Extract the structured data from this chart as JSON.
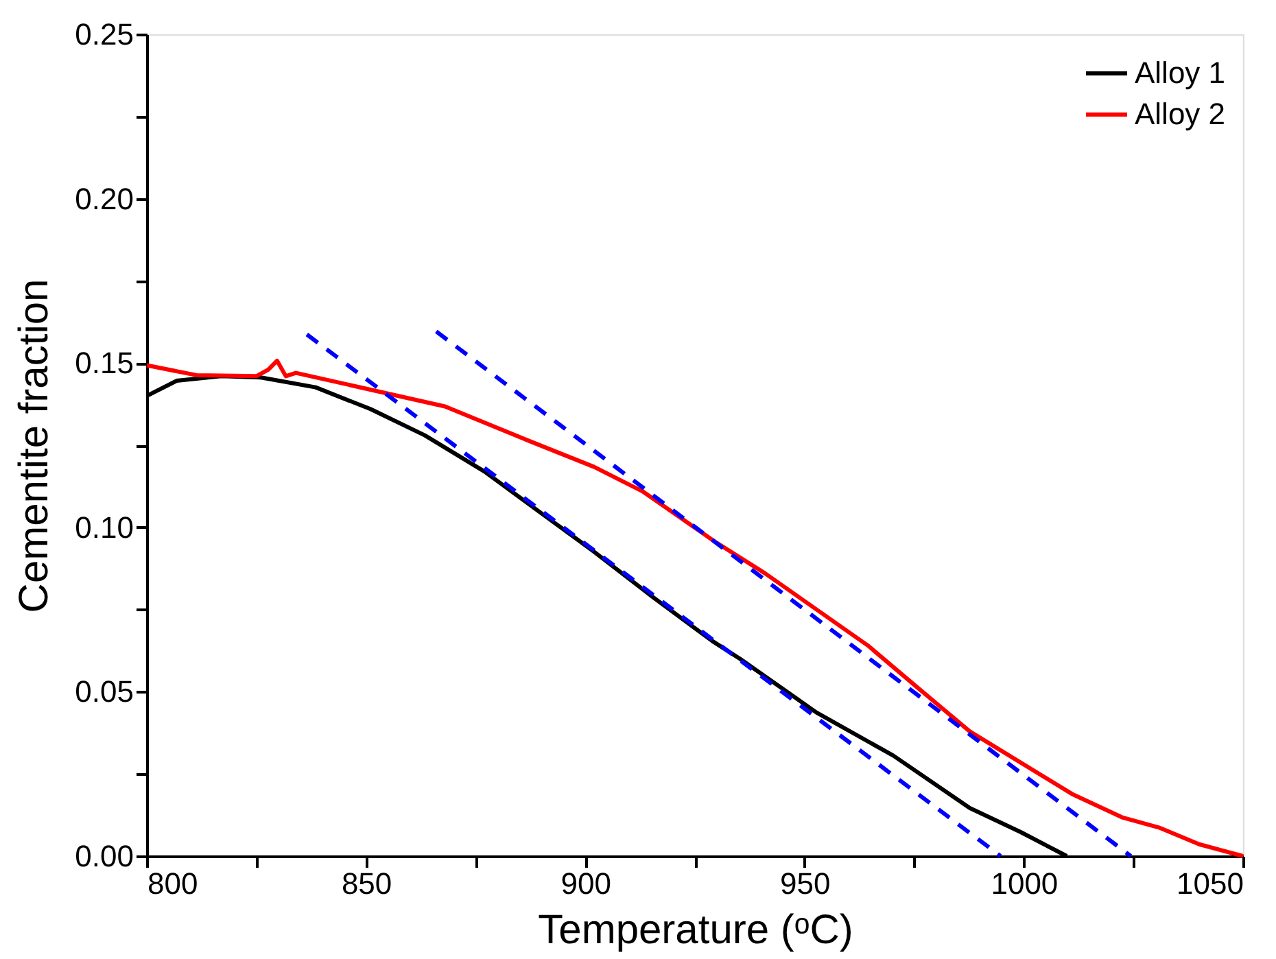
{
  "chart_data": {
    "type": "line",
    "xlabel": "Temperature (ᵒC)",
    "ylabel": "Cementite fraction",
    "xlim": [
      800,
      1050
    ],
    "ylim": [
      0,
      0.25
    ],
    "xticks": [
      800,
      {
        "value": 825,
        "label": null
      },
      850,
      {
        "value": 875,
        "label": null
      },
      900,
      {
        "value": 925,
        "label": null
      },
      950,
      {
        "value": 975,
        "label": null
      },
      1000,
      {
        "value": 1025,
        "label": null
      },
      1050
    ],
    "yticks": [
      {
        "value": 0,
        "label": "0.00"
      },
      {
        "value": 0.025,
        "label": null
      },
      {
        "value": 0.05,
        "label": "0.05"
      },
      {
        "value": 0.075,
        "label": null
      },
      {
        "value": 0.1,
        "label": "0.10"
      },
      {
        "value": 0.125,
        "label": null
      },
      {
        "value": 0.15,
        "label": "0.15"
      },
      {
        "value": 0.175,
        "label": null
      },
      {
        "value": 0.2,
        "label": "0.20"
      },
      {
        "value": 0.225,
        "label": null
      },
      {
        "value": 0.25,
        "label": "0.25"
      }
    ],
    "grid": false,
    "legend": "top right",
    "marker": "none",
    "series": [
      {
        "name": "Alloy 1",
        "color": "#000000",
        "line_style": "solid",
        "x": [
          800,
          806.8,
          817,
          826,
          838.5,
          851,
          863.4,
          877,
          890.6,
          902,
          915.5,
          929,
          935.3,
          952.7,
          970.2,
          987.7,
          999.3,
          1009.8
        ],
        "values": [
          0.14,
          0.1446,
          0.146,
          0.1456,
          0.1426,
          0.136,
          0.128,
          0.117,
          0.1037,
          0.0926,
          0.0787,
          0.0654,
          0.06,
          0.0437,
          0.0306,
          0.0146,
          0.0073,
          0.0
        ]
      },
      {
        "name": "Alloy 2",
        "color": "#ff0000",
        "line_style": "solid",
        "x": [
          800,
          811.3,
          825,
          827.7,
          829.7,
          831.7,
          834,
          852,
          868,
          888.3,
          902,
          913,
          929.4,
          941,
          964.4,
          976,
          987.7,
          1011,
          1022.6,
          1030.8,
          1040,
          1050
        ],
        "values": [
          0.1493,
          0.1463,
          0.146,
          0.148,
          0.1507,
          0.146,
          0.147,
          0.1416,
          0.1368,
          0.1257,
          0.1184,
          0.111,
          0.0958,
          0.086,
          0.0641,
          0.051,
          0.0379,
          0.0189,
          0.0117,
          0.0087,
          0.0036,
          0.0
        ]
      },
      {
        "color": "#0000ff",
        "line_style": "dashed",
        "x": [
          836.5,
          994.7
        ],
        "values": [
          0.1587,
          0.0
        ]
      },
      {
        "color": "#0000ff",
        "line_style": "dashed",
        "x": [
          866,
          1024.4
        ],
        "values": [
          0.1596,
          0.0
        ]
      }
    ]
  }
}
